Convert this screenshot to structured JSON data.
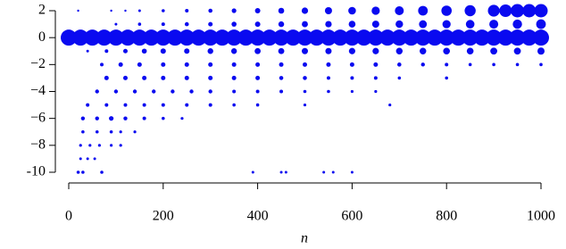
{
  "chart_data": {
    "type": "scatter",
    "xlabel": "n",
    "color": "#0a0af0",
    "xlim": [
      0,
      1000
    ],
    "xticks": [
      0,
      200,
      400,
      600,
      800,
      1000
    ],
    "ylim": [
      -10,
      2
    ],
    "yticks": [
      -10,
      {
        "value": -8,
        "label": "−8"
      },
      {
        "value": -6,
        "label": "−6"
      },
      {
        "value": -4,
        "label": "−4"
      },
      {
        "value": -2,
        "label": "−2"
      },
      0,
      2
    ],
    "x": [
      20,
      90,
      120,
      150,
      200,
      250,
      300,
      350,
      400,
      450,
      500,
      550,
      600,
      650,
      700,
      750,
      800,
      850,
      900,
      925,
      950,
      975,
      1000,
      100,
      150,
      200,
      250,
      300,
      350,
      400,
      450,
      500,
      550,
      600,
      650,
      700,
      750,
      800,
      850,
      900,
      950,
      1000,
      0,
      25,
      50,
      75,
      100,
      125,
      150,
      175,
      200,
      225,
      250,
      275,
      300,
      325,
      350,
      375,
      400,
      425,
      450,
      475,
      500,
      525,
      550,
      575,
      600,
      625,
      650,
      675,
      700,
      725,
      750,
      775,
      800,
      825,
      850,
      875,
      900,
      925,
      950,
      975,
      1000,
      40,
      80,
      120,
      160,
      200,
      250,
      300,
      350,
      400,
      450,
      500,
      550,
      600,
      650,
      700,
      750,
      800,
      850,
      900,
      950,
      1000,
      70,
      110,
      150,
      200,
      250,
      300,
      350,
      400,
      450,
      500,
      550,
      600,
      650,
      700,
      750,
      800,
      850,
      900,
      950,
      1000,
      80,
      120,
      160,
      200,
      250,
      300,
      350,
      400,
      450,
      500,
      550,
      600,
      650,
      700,
      800,
      60,
      100,
      140,
      180,
      220,
      260,
      300,
      350,
      400,
      450,
      500,
      550,
      600,
      650,
      40,
      80,
      120,
      160,
      200,
      250,
      300,
      350,
      400,
      500,
      680,
      30,
      60,
      90,
      120,
      160,
      200,
      240,
      30,
      60,
      90,
      110,
      140,
      25,
      45,
      65,
      90,
      110,
      25,
      40,
      55,
      20,
      30,
      70,
      390,
      450,
      460,
      540,
      560,
      600
    ],
    "values": [
      2,
      2,
      2,
      2,
      2,
      2,
      2,
      2,
      2,
      2,
      2,
      2,
      2,
      2,
      2,
      2,
      2,
      2,
      2,
      2,
      2,
      2,
      2,
      1,
      1,
      1,
      1,
      1,
      1,
      1,
      1,
      1,
      1,
      1,
      1,
      1,
      1,
      1,
      1,
      1,
      1,
      1,
      0,
      0,
      0,
      0,
      0,
      0,
      0,
      0,
      0,
      0,
      0,
      0,
      0,
      0,
      0,
      0,
      0,
      0,
      0,
      0,
      0,
      0,
      0,
      0,
      0,
      0,
      0,
      0,
      0,
      0,
      0,
      0,
      0,
      0,
      0,
      0,
      0,
      0,
      0,
      0,
      0,
      -1,
      -1,
      -1,
      -1,
      -1,
      -1,
      -1,
      -1,
      -1,
      -1,
      -1,
      -1,
      -1,
      -1,
      -1,
      -1,
      -1,
      -1,
      -1,
      -1,
      -1,
      -2,
      -2,
      -2,
      -2,
      -2,
      -2,
      -2,
      -2,
      -2,
      -2,
      -2,
      -2,
      -2,
      -2,
      -2,
      -2,
      -2,
      -2,
      -2,
      -2,
      -3,
      -3,
      -3,
      -3,
      -3,
      -3,
      -3,
      -3,
      -3,
      -3,
      -3,
      -3,
      -3,
      -3,
      -3,
      -4,
      -4,
      -4,
      -4,
      -4,
      -4,
      -4,
      -4,
      -4,
      -4,
      -4,
      -4,
      -4,
      -4,
      -5,
      -5,
      -5,
      -5,
      -5,
      -5,
      -5,
      -5,
      -5,
      -5,
      -5,
      -6,
      -6,
      -6,
      -6,
      -6,
      -6,
      -6,
      -7,
      -7,
      -7,
      -7,
      -7,
      -8,
      -8,
      -8,
      -8,
      -8,
      -9,
      -9,
      -9,
      -10,
      -10,
      -10,
      -10,
      -10,
      -10,
      -10,
      -10,
      -10
    ],
    "sizes": [
      1.2,
      1.2,
      1.2,
      1.5,
      1.8,
      2,
      2.3,
      2.6,
      3,
      3.3,
      3.6,
      4,
      4.3,
      4.6,
      5,
      5.4,
      5.8,
      6.2,
      6.6,
      7,
      7.5,
      7.5,
      7.5,
      1.5,
      1.8,
      2,
      2.3,
      2.5,
      2.8,
      3,
      3.2,
      3.4,
      3.6,
      3.8,
      4,
      4.2,
      4.4,
      4.6,
      4.8,
      5,
      5.2,
      5.4,
      9,
      9,
      9,
      9,
      9,
      9,
      9,
      9,
      9,
      9,
      9,
      9,
      9,
      9,
      9,
      9,
      9,
      9,
      9,
      9,
      9,
      9,
      9,
      9,
      9,
      9,
      9,
      9,
      9,
      9,
      9,
      9,
      9,
      9,
      9,
      9,
      9,
      9,
      9,
      9,
      9,
      1.5,
      2,
      2.5,
      2.8,
      3,
      3,
      3.2,
      3.2,
      3.4,
      3.4,
      3.5,
      3.5,
      3.6,
      3.6,
      3.7,
      3.7,
      3.8,
      3.8,
      3.9,
      3.9,
      4,
      2,
      2.5,
      2.5,
      2.5,
      2.5,
      2.5,
      2.5,
      2.5,
      2.5,
      2.5,
      2.5,
      2.5,
      2.5,
      2.3,
      2.2,
      2,
      1.8,
      1.8,
      1.8,
      1.8,
      2.5,
      2.5,
      2.5,
      2.5,
      2.5,
      2.5,
      2.5,
      2.5,
      2.3,
      2.3,
      2,
      2,
      2,
      1.8,
      1.8,
      2.2,
      2.2,
      2.2,
      2.2,
      2.2,
      2.2,
      2.2,
      2,
      2,
      2,
      1.8,
      1.8,
      1.6,
      1.6,
      2,
      2,
      2,
      2,
      2,
      2,
      2,
      1.8,
      1.8,
      1.6,
      1.6,
      2.2,
      2.2,
      2.6,
      2.2,
      2,
      1.8,
      1.6,
      1.8,
      1.8,
      1.8,
      1.6,
      1.6,
      1.6,
      1.6,
      1.6,
      1.6,
      1.6,
      1.5,
      1.5,
      1.5,
      1.8,
      1.8,
      1.8,
      1.5,
      1.5,
      1.5,
      1.5,
      1.5,
      1.5
    ]
  }
}
